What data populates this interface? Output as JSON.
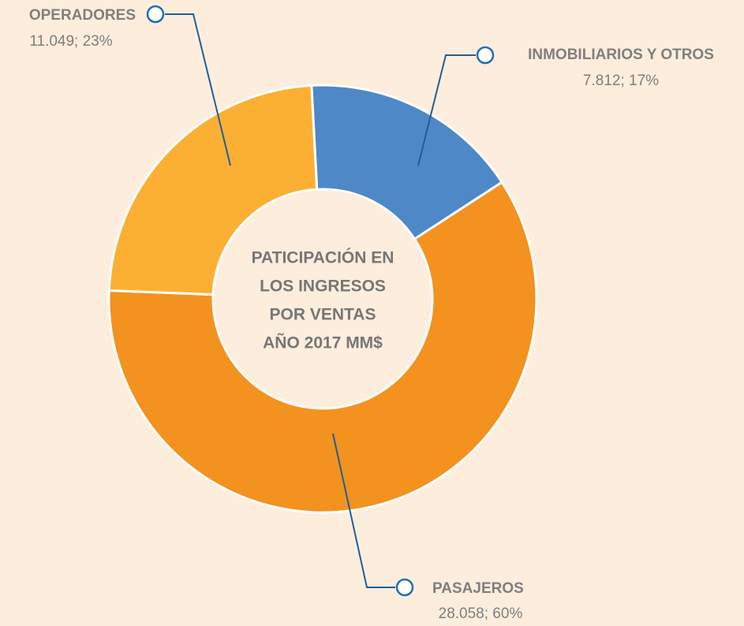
{
  "chart_data": {
    "type": "donut",
    "title_lines": [
      "PATICIPACIÓN EN",
      "LOS INGRESOS",
      "POR VENTAS",
      "AÑO 2017 MM$"
    ],
    "categories": [
      "INMOBILIARIOS Y OTROS",
      "PASAJEROS",
      "OPERADORES"
    ],
    "values": [
      7812,
      28058,
      11049
    ],
    "value_labels": [
      "7.812; 17%",
      "28.058; 60%",
      "11.049; 23%"
    ],
    "colors": [
      "#4e88c7",
      "#f4921f",
      "#fbb034"
    ]
  }
}
